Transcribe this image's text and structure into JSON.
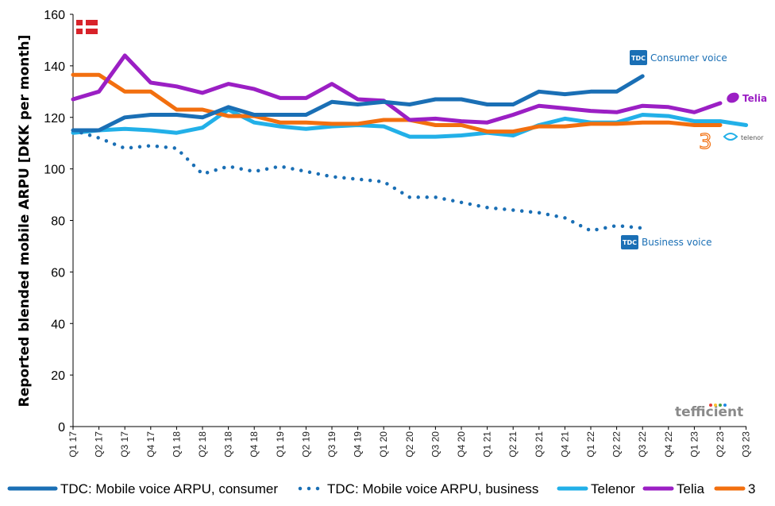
{
  "chart_data": {
    "type": "line",
    "title": "",
    "xlabel": "",
    "ylabel": "Reported blended mobile ARPU [DKK per month]",
    "ylim": [
      0,
      160
    ],
    "yticks": [
      "0",
      "20",
      "40",
      "60",
      "80",
      "100",
      "120",
      "140",
      "160"
    ],
    "grid": false,
    "legend_position": "bottom",
    "categories": [
      "Q1 17",
      "Q2 17",
      "Q3 17",
      "Q4 17",
      "Q1 18",
      "Q2 18",
      "Q3 18",
      "Q4 18",
      "Q1 19",
      "Q2 19",
      "Q3 19",
      "Q4 19",
      "Q1 20",
      "Q2 20",
      "Q3 20",
      "Q4 20",
      "Q1 21",
      "Q2 21",
      "Q3 21",
      "Q4 21",
      "Q1 22",
      "Q2 22",
      "Q3 22",
      "Q4 22",
      "Q1 23",
      "Q2 23",
      "Q3 23"
    ],
    "series": [
      {
        "name": "TDC: Mobile voice ARPU, consumer",
        "color": "#1a6fb5",
        "style": "solid",
        "values": [
          115,
          115,
          120,
          121,
          121,
          120,
          124,
          121,
          121,
          121,
          126,
          125,
          126,
          125,
          127,
          127,
          125,
          125,
          130,
          129,
          130,
          130,
          136,
          null,
          null,
          null,
          null
        ]
      },
      {
        "name": "TDC: Mobile voice ARPU, business",
        "color": "#1a6fb5",
        "style": "dotted",
        "values": [
          115,
          112,
          108,
          109,
          108,
          98,
          101,
          99,
          101,
          99,
          97,
          96,
          95,
          89,
          89,
          87,
          85,
          84,
          83,
          81,
          76,
          78,
          77,
          null,
          null,
          null,
          null
        ]
      },
      {
        "name": "Telenor",
        "color": "#22b0e8",
        "style": "solid",
        "values": [
          114,
          115,
          115.5,
          115,
          114,
          116,
          123,
          118,
          116.5,
          115.5,
          116.5,
          117,
          116.5,
          112.5,
          112.5,
          113,
          114,
          113,
          117,
          119.5,
          118,
          118,
          121,
          120.5,
          118.5,
          118.5,
          117
        ]
      },
      {
        "name": "Telia",
        "color": "#9b1fc4",
        "style": "solid",
        "values": [
          127,
          130,
          144,
          133.5,
          132,
          129.5,
          133,
          131,
          127.5,
          127.5,
          133,
          127,
          126.5,
          119,
          119.5,
          118.5,
          118,
          121,
          124.5,
          123.5,
          122.5,
          122,
          124.5,
          124,
          122,
          125.5,
          null
        ]
      },
      {
        "name": "3",
        "color": "#f26f0f",
        "style": "solid",
        "values": [
          136.5,
          136.5,
          130,
          130,
          123,
          123,
          120.5,
          120.5,
          118,
          118,
          117.5,
          117.5,
          119,
          119,
          117,
          117,
          114.5,
          114.5,
          116.5,
          116.5,
          117.5,
          117.5,
          118,
          118,
          117,
          117,
          null
        ]
      }
    ],
    "annotations": [
      {
        "text": "TDC",
        "logo": "tdc-logo",
        "label": "Consumer voice"
      },
      {
        "text": "TDC",
        "logo": "tdc-logo",
        "label": "Business voice"
      },
      {
        "text": "Telia",
        "logo": "telia-logo"
      },
      {
        "text": "telenor",
        "logo": "telenor-logo"
      },
      {
        "text": "3",
        "logo": "three-logo"
      },
      {
        "text": "tefficient",
        "logo": "tefficient-watermark"
      }
    ],
    "flag": "denmark-flag"
  }
}
